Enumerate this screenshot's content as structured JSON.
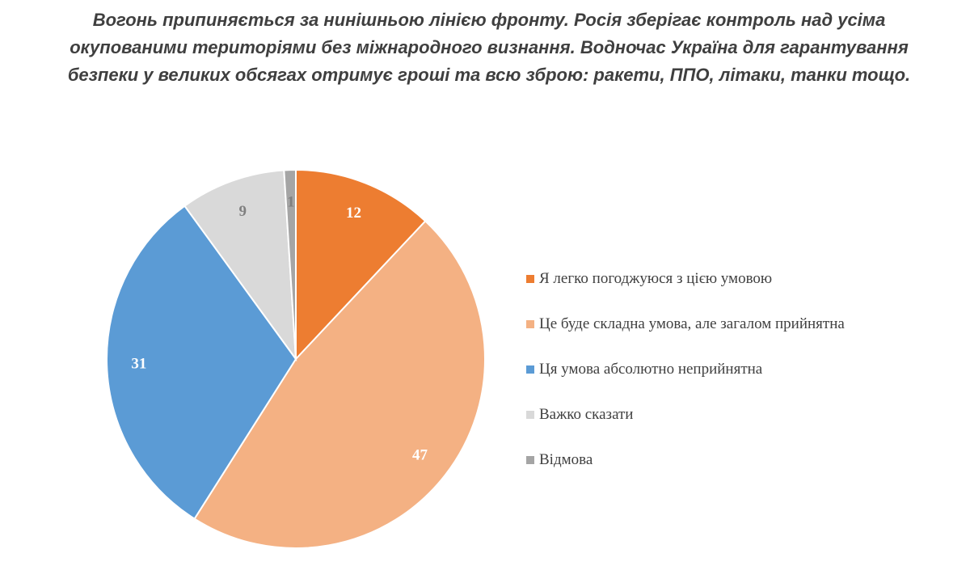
{
  "chart_data": {
    "type": "pie",
    "title": "Вогонь припиняється за нинішньою лінією фронту. Росія зберігає контроль над усіма окупованими територіями без міжнародного визнання. Водночас Україна для гарантування безпеки у великих обсягах отримує гроші та всю зброю: ракети, ППО, літаки, танки тощо.",
    "legend_position": "right",
    "slices": [
      {
        "label": "Я легко погоджуюся з цією умовою",
        "value": 12,
        "color": "#ED7D31",
        "label_color": "#ffffff"
      },
      {
        "label": "Це буде складна умова, але загалом прийнятна",
        "value": 47,
        "color": "#F4B183",
        "label_color": "#ffffff"
      },
      {
        "label": "Ця умова абсолютно неприйнятна",
        "value": 31,
        "color": "#5B9BD5",
        "label_color": "#ffffff"
      },
      {
        "label": "Важко сказати",
        "value": 9,
        "color": "#D9D9D9",
        "label_color": "#7f7f7f"
      },
      {
        "label": "Відмова",
        "value": 1,
        "color": "#A5A5A5",
        "label_color": "#7f7f7f"
      }
    ]
  }
}
